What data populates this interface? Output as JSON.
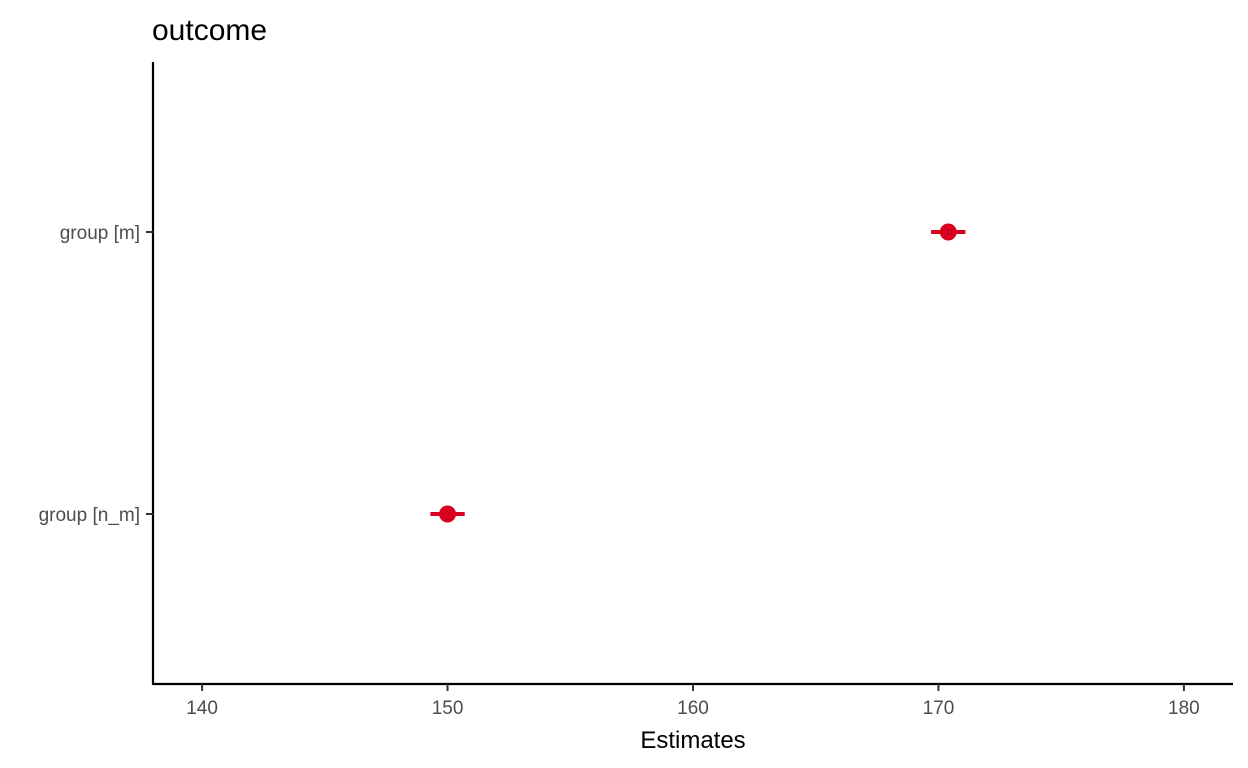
{
  "chart_data": {
    "type": "scatter",
    "title": "outcome",
    "xlabel": "Estimates",
    "ylabel": "",
    "xlim": [
      138,
      182
    ],
    "x_ticks": [
      140,
      150,
      160,
      170,
      180
    ],
    "x_tick_labels": [
      "140",
      "150",
      "160",
      "170",
      "180"
    ],
    "categories": [
      "group [m]",
      "group [n_m]"
    ],
    "series": [
      {
        "estimates": [
          170.4,
          150.0
        ],
        "ci_low": [
          169.7,
          149.3
        ],
        "ci_high": [
          171.1,
          150.7
        ]
      }
    ],
    "grid": false,
    "legend": "none",
    "colors": {
      "point": "#d7001e",
      "axis": "#000000",
      "tick_label": "#4d4d4d"
    }
  }
}
